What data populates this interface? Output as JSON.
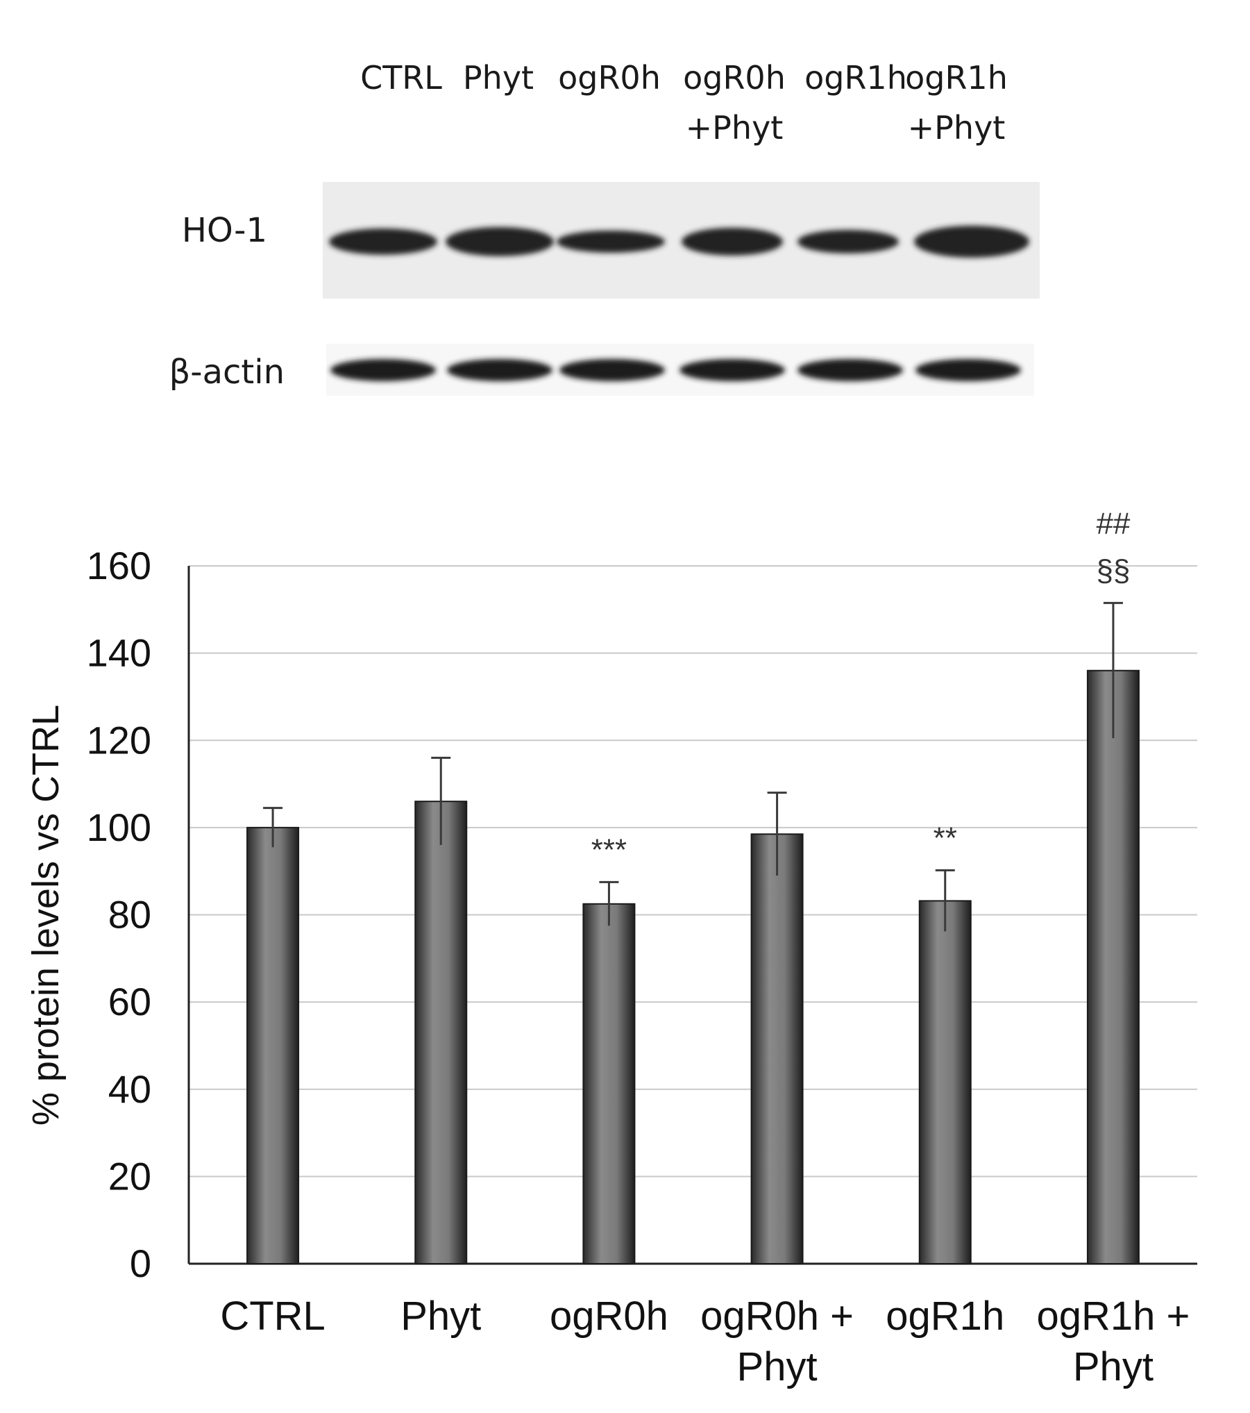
{
  "blot": {
    "lanes": [
      {
        "line1": "CTRL",
        "line2": ""
      },
      {
        "line1": "Phyt",
        "line2": ""
      },
      {
        "line1": "ogR0h",
        "line2": ""
      },
      {
        "line1": "ogR0h",
        "line2": "+Phyt"
      },
      {
        "line1": "ogR1h",
        "line2": ""
      },
      {
        "line1": "ogR1h",
        "line2": "+Phyt"
      }
    ],
    "rows": [
      {
        "label": "HO-1"
      },
      {
        "label": "β-actin"
      }
    ]
  },
  "chart_data": {
    "type": "bar",
    "categories": [
      {
        "line1": "CTRL",
        "line2": ""
      },
      {
        "line1": "Phyt",
        "line2": ""
      },
      {
        "line1": "ogR0h",
        "line2": ""
      },
      {
        "line1": "ogR0h +",
        "line2": "Phyt"
      },
      {
        "line1": "ogR1h",
        "line2": ""
      },
      {
        "line1": "ogR1h +",
        "line2": "Phyt"
      }
    ],
    "values": [
      100,
      106,
      82.5,
      98.5,
      83.2,
      136
    ],
    "errors": [
      4.5,
      10,
      5,
      9.5,
      7,
      15.5
    ],
    "significance": [
      {
        "line1": "",
        "line2": ""
      },
      {
        "line1": "",
        "line2": ""
      },
      {
        "line1": "***",
        "line2": ""
      },
      {
        "line1": "",
        "line2": ""
      },
      {
        "line1": "**",
        "line2": ""
      },
      {
        "line1": "##",
        "line2": "§§"
      }
    ],
    "ylabel": "% protein levels vs CTRL",
    "ylim": [
      0,
      160
    ],
    "yticks": [
      0,
      20,
      40,
      60,
      80,
      100,
      120,
      140,
      160
    ],
    "grid": true,
    "bar_color": "#6b6b6b"
  }
}
